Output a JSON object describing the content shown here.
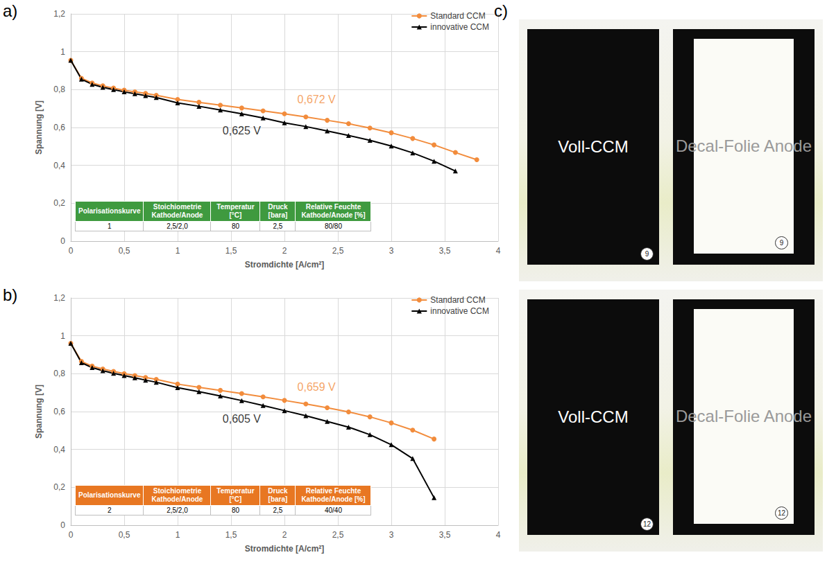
{
  "chart_data": [
    {
      "type": "line",
      "panel": "a)",
      "x_label": "Stromdichte [A/cm²]",
      "y_label": "Spannung [V]",
      "xlim": [
        0,
        4
      ],
      "xticks": [
        0,
        {
          "value": 0.5,
          "label": "0,5"
        },
        1,
        {
          "value": 1.5,
          "label": "1,5"
        },
        2,
        {
          "value": 2.5,
          "label": "2,5"
        },
        3,
        {
          "value": 3.5,
          "label": "3,5"
        },
        4
      ],
      "ylim": [
        0,
        1.2
      ],
      "yticks": [
        0,
        {
          "value": 0.2,
          "label": "0,2"
        },
        {
          "value": 0.4,
          "label": "0,4"
        },
        {
          "value": 0.6,
          "label": "0,6"
        },
        {
          "value": 0.8,
          "label": "0,8"
        },
        1,
        {
          "value": 1.2,
          "label": "1,2"
        }
      ],
      "grid": true,
      "legend": "upper right",
      "series": [
        {
          "name": "Standard CCM",
          "color": "#f28c3c",
          "marker": "circle",
          "line_style": "solid",
          "x": [
            0,
            0.1,
            0.2,
            0.3,
            0.4,
            0.5,
            0.6,
            0.7,
            0.8,
            1.0,
            1.2,
            1.4,
            1.6,
            1.8,
            2.0,
            2.2,
            2.4,
            2.6,
            2.8,
            3.0,
            3.2,
            3.4,
            3.6,
            3.8
          ],
          "values": [
            0.955,
            0.86,
            0.835,
            0.82,
            0.808,
            0.797,
            0.788,
            0.78,
            0.77,
            0.748,
            0.733,
            0.718,
            0.703,
            0.688,
            0.672,
            0.656,
            0.638,
            0.62,
            0.597,
            0.572,
            0.542,
            0.508,
            0.468,
            0.43
          ]
        },
        {
          "name": "innovative CCM",
          "color": "#000000",
          "marker": "triangle",
          "line_style": "solid",
          "x": [
            0,
            0.1,
            0.2,
            0.3,
            0.4,
            0.5,
            0.6,
            0.7,
            0.8,
            1.0,
            1.2,
            1.4,
            1.6,
            1.8,
            2.0,
            2.2,
            2.4,
            2.6,
            2.8,
            3.0,
            3.2,
            3.4,
            3.6
          ],
          "values": [
            0.955,
            0.855,
            0.828,
            0.812,
            0.8,
            0.788,
            0.778,
            0.768,
            0.758,
            0.73,
            0.712,
            0.692,
            0.672,
            0.65,
            0.625,
            0.605,
            0.582,
            0.558,
            0.532,
            0.502,
            0.466,
            0.422,
            0.37
          ]
        }
      ],
      "annotations": [
        {
          "text": "0,672 V",
          "x": 2.3,
          "y": 0.75,
          "color": "#f28c3c"
        },
        {
          "text": "0,625 V",
          "x": 1.6,
          "y": 0.585,
          "color": "#000000"
        }
      ],
      "table": {
        "color": "#3f9a3f",
        "header": [
          "Polarisationskurve",
          "Stoichiometrie Kathode/Anode",
          "Temperatur [°C]",
          "Druck [bara]",
          "Relative Feuchte Kathode/Anode [%]"
        ],
        "rows": [
          [
            "1",
            "2,5/2,0",
            "80",
            "2,5",
            "80/80"
          ]
        ]
      }
    },
    {
      "type": "line",
      "panel": "b)",
      "x_label": "Stromdichte [A/cm²]",
      "y_label": "Spannung [V]",
      "xlim": [
        0,
        4
      ],
      "xticks": [
        0,
        {
          "value": 0.5,
          "label": "0,5"
        },
        1,
        {
          "value": 1.5,
          "label": "1,5"
        },
        2,
        {
          "value": 2.5,
          "label": "2,5"
        },
        3,
        {
          "value": 3.5,
          "label": "3,5"
        },
        4
      ],
      "ylim": [
        0,
        1.2
      ],
      "yticks": [
        0,
        {
          "value": 0.2,
          "label": "0,2"
        },
        {
          "value": 0.4,
          "label": "0,4"
        },
        {
          "value": 0.6,
          "label": "0,6"
        },
        {
          "value": 0.8,
          "label": "0,8"
        },
        1,
        {
          "value": 1.2,
          "label": "1,2"
        }
      ],
      "grid": true,
      "legend": "upper right",
      "series": [
        {
          "name": "Standard CCM",
          "color": "#f28c3c",
          "marker": "circle",
          "line_style": "solid",
          "x": [
            0,
            0.1,
            0.2,
            0.3,
            0.4,
            0.5,
            0.6,
            0.7,
            0.8,
            1.0,
            1.2,
            1.4,
            1.6,
            1.8,
            2.0,
            2.2,
            2.4,
            2.6,
            2.8,
            3.0,
            3.2,
            3.4
          ],
          "values": [
            0.96,
            0.865,
            0.84,
            0.825,
            0.812,
            0.8,
            0.79,
            0.78,
            0.77,
            0.745,
            0.728,
            0.712,
            0.695,
            0.678,
            0.659,
            0.64,
            0.62,
            0.598,
            0.572,
            0.54,
            0.502,
            0.455
          ]
        },
        {
          "name": "innovative CCM",
          "color": "#000000",
          "marker": "triangle",
          "line_style": "solid",
          "x": [
            0,
            0.1,
            0.2,
            0.3,
            0.4,
            0.5,
            0.6,
            0.7,
            0.8,
            1.0,
            1.2,
            1.4,
            1.6,
            1.8,
            2.0,
            2.2,
            2.4,
            2.6,
            2.8,
            3.0,
            3.2,
            3.4
          ],
          "values": [
            0.96,
            0.858,
            0.832,
            0.816,
            0.802,
            0.79,
            0.778,
            0.766,
            0.755,
            0.726,
            0.705,
            0.682,
            0.658,
            0.632,
            0.605,
            0.578,
            0.548,
            0.518,
            0.478,
            0.425,
            0.352,
            0.145
          ]
        }
      ],
      "annotations": [
        {
          "text": "0,659 V",
          "x": 2.3,
          "y": 0.73,
          "color": "#f28c3c"
        },
        {
          "text": "0,605 V",
          "x": 1.6,
          "y": 0.56,
          "color": "#000000"
        }
      ],
      "table": {
        "color": "#e87722",
        "header": [
          "Polarisationskurve",
          "Stoichiometrie Kathode/Anode",
          "Temperatur [°C]",
          "Druck [bara]",
          "Relative Feuchte Kathode/Anode [%]"
        ],
        "rows": [
          [
            "2",
            "2,5/2,0",
            "80",
            "2,5",
            "40/40"
          ]
        ]
      }
    }
  ],
  "panel_c": {
    "label": "c)",
    "photos": [
      {
        "sample": "9",
        "items": [
          "Voll-CCM",
          "Decal-Folie Anode"
        ]
      },
      {
        "sample": "12",
        "items": [
          "Voll-CCM",
          "Decal-Folie Anode"
        ]
      }
    ]
  }
}
